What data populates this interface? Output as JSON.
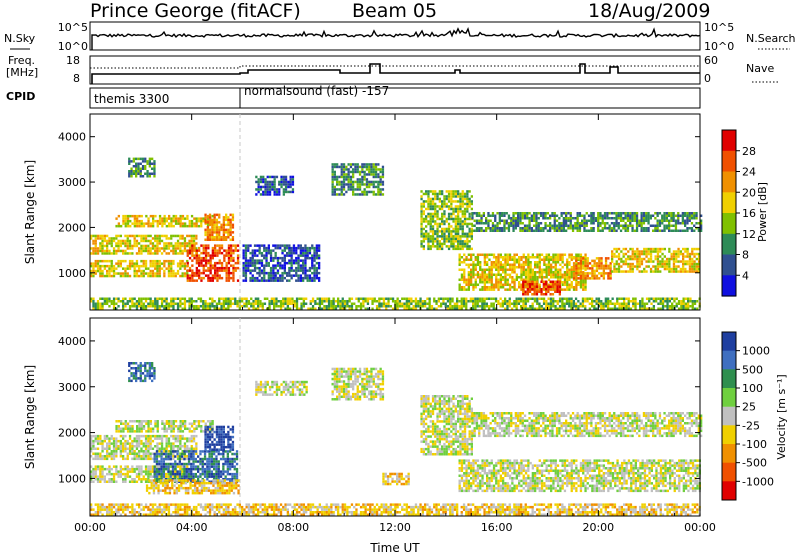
{
  "header": {
    "station": "Prince George (fitACF)",
    "beam": "Beam 05",
    "date": "18/Aug/2009"
  },
  "noise_panel": {
    "left_label": "N.Sky",
    "left_ticks": [
      "10^5",
      "10^0"
    ],
    "right_ticks": [
      "10^5",
      "10^0"
    ],
    "right_label": "N.Search"
  },
  "freq_panel": {
    "left_label_1": "Freq.",
    "left_label_2": "[MHz]",
    "left_ticks": [
      "18",
      "8"
    ],
    "right_ticks": [
      "60",
      "0"
    ],
    "right_label": "Nave"
  },
  "cpid_panel": {
    "label": "CPID",
    "programs": [
      {
        "name": "themis 3300",
        "start_hour": 0
      },
      {
        "name": "normalsound (fast) -157",
        "start_hour": 6
      }
    ]
  },
  "chart_data": [
    {
      "type": "heatmap",
      "quantity": "Power",
      "colorbar_label": "Power [dB]",
      "colorbar_ticks": [
        "28",
        "24",
        "20",
        "16",
        "12",
        "8",
        "4"
      ],
      "colorbar_colors": [
        "#e00000",
        "#f05000",
        "#f09000",
        "#f0d000",
        "#80c000",
        "#2e8b57",
        "#305090",
        "#1010e0"
      ],
      "ylabel": "Slant Range [km]",
      "yticks": [
        "4000",
        "3000",
        "2000",
        "1000"
      ],
      "ylim": [
        180,
        4500
      ],
      "xlim": [
        0,
        24
      ],
      "xticks": [
        "00:00",
        "04:00",
        "08:00",
        "12:00",
        "16:00",
        "20:00",
        "00:00"
      ],
      "blobs": [
        {
          "t0": 0.0,
          "t1": 4.2,
          "r0": 1400,
          "r1": 1800,
          "level": 4
        },
        {
          "t0": 1.0,
          "t1": 4.8,
          "r0": 2000,
          "r1": 2250,
          "level": 4
        },
        {
          "t0": 0.0,
          "t1": 3.8,
          "r0": 900,
          "r1": 1250,
          "level": 4
        },
        {
          "t0": 3.8,
          "t1": 5.8,
          "r0": 800,
          "r1": 1600,
          "level": 6
        },
        {
          "t0": 4.5,
          "t1": 5.6,
          "r0": 1700,
          "r1": 2300,
          "level": 5
        },
        {
          "t0": 1.5,
          "t1": 2.5,
          "r0": 3100,
          "r1": 3500,
          "level": 2
        },
        {
          "t0": 6.0,
          "t1": 9.0,
          "r0": 800,
          "r1": 1600,
          "level": 1
        },
        {
          "t0": 6.5,
          "t1": 8.0,
          "r0": 2700,
          "r1": 3100,
          "level": 1
        },
        {
          "t0": 9.5,
          "t1": 11.5,
          "r0": 2700,
          "r1": 3400,
          "level": 2
        },
        {
          "t0": 13.0,
          "t1": 15.0,
          "r0": 1500,
          "r1": 2800,
          "level": 3
        },
        {
          "t0": 14.5,
          "t1": 19.5,
          "r0": 600,
          "r1": 1400,
          "level": 4
        },
        {
          "t0": 19.0,
          "t1": 20.5,
          "r0": 850,
          "r1": 1300,
          "level": 5
        },
        {
          "t0": 20.5,
          "t1": 24.0,
          "r0": 1000,
          "r1": 1500,
          "level": 4
        },
        {
          "t0": 15.0,
          "t1": 24.0,
          "r0": 1900,
          "r1": 2300,
          "level": 2
        },
        {
          "t0": 17.0,
          "t1": 18.5,
          "r0": 500,
          "r1": 800,
          "level": 6
        },
        {
          "t0": 0.0,
          "t1": 24.0,
          "r0": 180,
          "r1": 420,
          "level": 3
        }
      ]
    },
    {
      "type": "heatmap",
      "quantity": "Velocity",
      "colorbar_label": "Velocity [m s⁻¹]",
      "colorbar_ticks": [
        "1000",
        "500",
        "100",
        "25",
        "-25",
        "-100",
        "-500",
        "-1000"
      ],
      "colorbar_colors": [
        "#1f3fa0",
        "#3f6fc0",
        "#2f8f4f",
        "#6fcf3f",
        "#c0c0c0",
        "#f0d000",
        "#f09000",
        "#f05000",
        "#e00000"
      ],
      "ylabel": "Slant Range [km]",
      "yticks": [
        "4000",
        "3000",
        "2000",
        "1000"
      ],
      "ylim": [
        180,
        4500
      ],
      "xlim": [
        0,
        24
      ],
      "xticks": [
        "00:00",
        "04:00",
        "08:00",
        "12:00",
        "16:00",
        "20:00",
        "00:00"
      ],
      "xlabel": "Time UT",
      "blobs": [
        {
          "t0": 0.0,
          "t1": 4.2,
          "r0": 1400,
          "r1": 1900,
          "level": 4
        },
        {
          "t0": 1.0,
          "t1": 4.8,
          "r0": 2000,
          "r1": 2250,
          "level": 4
        },
        {
          "t0": 0.0,
          "t1": 3.8,
          "r0": 900,
          "r1": 1250,
          "level": 4
        },
        {
          "t0": 2.5,
          "t1": 5.8,
          "r0": 900,
          "r1": 1600,
          "level": 7
        },
        {
          "t0": 4.5,
          "t1": 5.6,
          "r0": 1600,
          "r1": 2100,
          "level": 8
        },
        {
          "t0": 2.2,
          "t1": 5.8,
          "r0": 650,
          "r1": 950,
          "level": 3
        },
        {
          "t0": 1.5,
          "t1": 2.5,
          "r0": 3100,
          "r1": 3500,
          "level": 7
        },
        {
          "t0": 6.5,
          "t1": 8.5,
          "r0": 2800,
          "r1": 3100,
          "level": 4
        },
        {
          "t0": 9.5,
          "t1": 11.5,
          "r0": 2700,
          "r1": 3400,
          "level": 4
        },
        {
          "t0": 11.5,
          "t1": 12.5,
          "r0": 850,
          "r1": 1100,
          "level": 3
        },
        {
          "t0": 13.0,
          "t1": 15.0,
          "r0": 1500,
          "r1": 2800,
          "level": 4
        },
        {
          "t0": 14.5,
          "t1": 24.0,
          "r0": 700,
          "r1": 1400,
          "level": 4
        },
        {
          "t0": 15.0,
          "t1": 24.0,
          "r0": 1900,
          "r1": 2400,
          "level": 4
        },
        {
          "t0": 0.0,
          "t1": 24.0,
          "r0": 180,
          "r1": 420,
          "level": 3
        }
      ]
    }
  ]
}
